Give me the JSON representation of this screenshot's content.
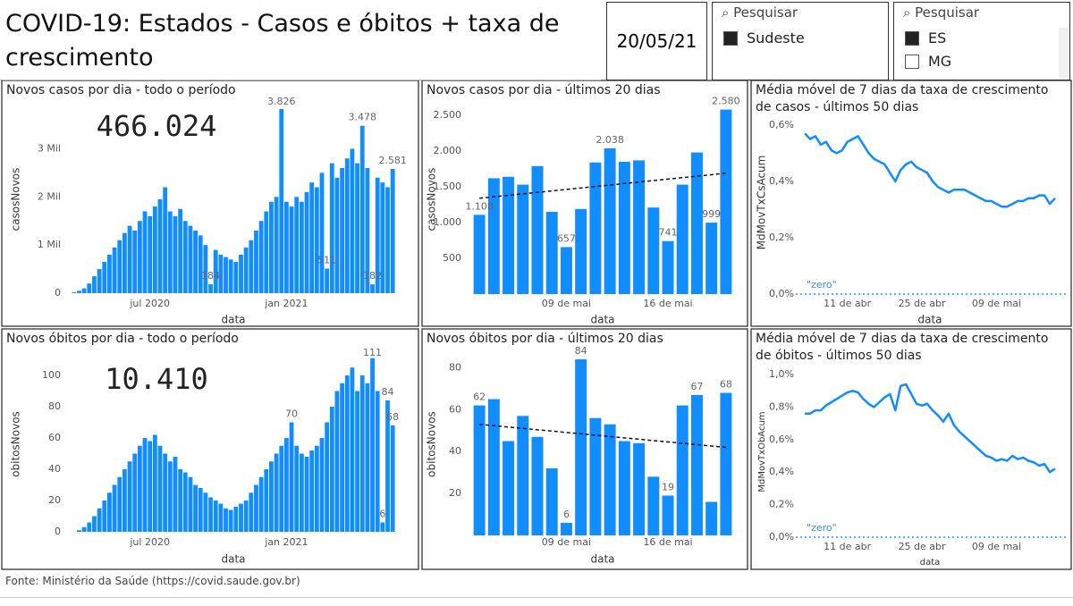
{
  "title": "COVID-19: Estados - Casos e óbitos + taxa de crescimento",
  "date": "20/05/21",
  "slicers": [
    {
      "search": "Pesquisar",
      "items": [
        {
          "label": "Sudeste",
          "checked": true
        }
      ]
    },
    {
      "search": "Pesquisar",
      "items": [
        {
          "label": "ES",
          "checked": true
        },
        {
          "label": "MG",
          "checked": false
        }
      ]
    }
  ],
  "footer": "Fonte: Ministério da Saúde (https://covid.saude.gov.br)",
  "chart_data": [
    {
      "type": "bar",
      "title": "Novos casos por dia - todo o período",
      "big_number": "466.024",
      "xlabel": "data",
      "ylabel": "casosNovos",
      "color": "#118dff",
      "categories": [
        null,
        null,
        null,
        null,
        null,
        null,
        null,
        null,
        null,
        null,
        null,
        null,
        null,
        null,
        null,
        "jul 2020",
        null,
        null,
        null,
        null,
        null,
        null,
        null,
        null,
        null,
        null,
        null,
        null,
        null,
        null,
        null,
        null,
        null,
        null,
        null,
        null,
        null,
        null,
        null,
        null,
        null,
        null,
        "jan 2021",
        null,
        null,
        null,
        null,
        null,
        null,
        null,
        null,
        null,
        null,
        null,
        null,
        null,
        null,
        null,
        null,
        null,
        null,
        null,
        null,
        null
      ],
      "values": [
        20,
        50,
        100,
        200,
        350,
        500,
        650,
        800,
        950,
        1100,
        1250,
        1400,
        1300,
        1500,
        1700,
        1600,
        1800,
        1950,
        2200,
        1700,
        1600,
        1750,
        1500,
        1400,
        1300,
        1200,
        1000,
        184,
        900,
        800,
        750,
        700,
        650,
        800,
        950,
        1100,
        1300,
        1500,
        1700,
        1900,
        2000,
        3826,
        1900,
        1800,
        2000,
        1900,
        2100,
        2300,
        2200,
        2500,
        511,
        2700,
        2400,
        2600,
        2800,
        3000,
        2700,
        3478,
        2600,
        182,
        2400,
        2300,
        2200,
        2581
      ],
      "value_labels": [
        null,
        null,
        null,
        null,
        null,
        null,
        null,
        null,
        null,
        null,
        null,
        null,
        null,
        null,
        null,
        null,
        null,
        null,
        null,
        null,
        null,
        null,
        null,
        null,
        null,
        null,
        null,
        "184",
        null,
        null,
        null,
        null,
        null,
        null,
        null,
        null,
        null,
        null,
        null,
        null,
        null,
        "3.826",
        null,
        null,
        null,
        null,
        null,
        null,
        null,
        null,
        "511",
        null,
        null,
        null,
        null,
        null,
        null,
        "3.478",
        null,
        "182",
        null,
        null,
        null,
        "2.581"
      ],
      "ylim": [
        0,
        3900
      ],
      "yticks": [
        0,
        {
          "value": 1000,
          "label": "1 Mil"
        },
        {
          "value": 2000,
          "label": "2 Mil"
        },
        {
          "value": 3000,
          "label": "3 Mil"
        }
      ]
    },
    {
      "type": "bar",
      "title": "Novos casos por dia - últimos 20 dias",
      "xlabel": "data",
      "ylabel": "casosNovos",
      "color": "#118dff",
      "categories": [
        null,
        null,
        null,
        null,
        null,
        null,
        "09 de mai",
        null,
        null,
        null,
        null,
        null,
        null,
        "16 de mai",
        null,
        null,
        null,
        null
      ],
      "values": [
        1108,
        1620,
        1640,
        1530,
        1790,
        1150,
        657,
        1190,
        1840,
        2038,
        1850,
        1870,
        1210,
        741,
        1530,
        1980,
        999,
        2580
      ],
      "value_labels": [
        "1.108",
        null,
        null,
        null,
        null,
        null,
        "657",
        null,
        null,
        "2.038",
        null,
        null,
        null,
        "741",
        null,
        null,
        "999",
        "2.580"
      ],
      "trend": [
        1340,
        1690
      ],
      "ylim": [
        0,
        2650
      ],
      "yticks": [
        500,
        {
          "value": 1000,
          "label": "1.000"
        },
        {
          "value": 1500,
          "label": "1.500"
        },
        {
          "value": 2000,
          "label": "2.000"
        },
        {
          "value": 2500,
          "label": "2.500"
        }
      ]
    },
    {
      "type": "line",
      "title": "Média móvel de 7 dias da taxa de crescimento de casos - últimos 50 dias",
      "xlabel": "data",
      "ylabel": "MdMovTxCsAcum",
      "color": "#118dff",
      "categories": [
        null,
        null,
        null,
        null,
        null,
        null,
        null,
        null,
        "11 de abr",
        null,
        null,
        null,
        null,
        null,
        null,
        null,
        null,
        null,
        null,
        null,
        null,
        null,
        "25 de abr",
        null,
        null,
        null,
        null,
        null,
        null,
        null,
        null,
        null,
        null,
        null,
        null,
        null,
        "09 de mai",
        null,
        null,
        null,
        null,
        null,
        null,
        null,
        null,
        null,
        null,
        null
      ],
      "values": [
        0.57,
        0.55,
        0.56,
        0.53,
        0.54,
        0.51,
        0.5,
        0.51,
        0.54,
        0.55,
        0.56,
        0.53,
        0.5,
        0.48,
        0.47,
        0.46,
        0.43,
        0.4,
        0.44,
        0.46,
        0.47,
        0.45,
        0.44,
        0.43,
        0.4,
        0.38,
        0.37,
        0.36,
        0.37,
        0.37,
        0.37,
        0.36,
        0.35,
        0.34,
        0.33,
        0.33,
        0.32,
        0.31,
        0.31,
        0.32,
        0.33,
        0.33,
        0.34,
        0.34,
        0.35,
        0.35,
        0.32,
        0.34
      ],
      "reference_line": {
        "label": "\"zero\"",
        "value": 0
      },
      "ylim": [
        0,
        0.65
      ],
      "yticks": [
        {
          "value": 0,
          "label": "0,0%"
        },
        {
          "value": 0.2,
          "label": "0,2%"
        },
        {
          "value": 0.4,
          "label": "0,4%"
        },
        {
          "value": 0.6,
          "label": "0,6%"
        }
      ]
    },
    {
      "type": "bar",
      "title": "Novos óbitos por dia - todo o período",
      "big_number": "10.410",
      "xlabel": "data",
      "ylabel": "obitosNovos",
      "color": "#118dff",
      "categories": [
        null,
        null,
        null,
        null,
        null,
        null,
        null,
        null,
        null,
        null,
        null,
        null,
        null,
        null,
        null,
        "jul 2020",
        null,
        null,
        null,
        null,
        null,
        null,
        null,
        null,
        null,
        null,
        null,
        null,
        null,
        null,
        null,
        null,
        null,
        null,
        null,
        null,
        null,
        null,
        null,
        null,
        null,
        null,
        "jan 2021",
        null,
        null,
        null,
        null,
        null,
        null,
        null,
        null,
        null,
        null,
        null,
        null,
        null,
        null,
        null,
        null,
        null,
        null,
        null,
        null,
        null
      ],
      "values": [
        0,
        1,
        3,
        6,
        10,
        15,
        20,
        25,
        30,
        35,
        40,
        45,
        50,
        55,
        60,
        58,
        62,
        55,
        50,
        45,
        48,
        40,
        38,
        35,
        30,
        28,
        25,
        22,
        20,
        18,
        15,
        14,
        16,
        18,
        20,
        25,
        30,
        35,
        40,
        45,
        50,
        55,
        60,
        70,
        55,
        50,
        48,
        52,
        55,
        60,
        70,
        80,
        90,
        95,
        100,
        105,
        90,
        100,
        95,
        111,
        90,
        6,
        84,
        68
      ],
      "value_labels": [
        null,
        null,
        null,
        null,
        null,
        null,
        null,
        null,
        null,
        null,
        null,
        null,
        null,
        null,
        null,
        null,
        null,
        null,
        null,
        null,
        null,
        null,
        null,
        null,
        null,
        null,
        null,
        null,
        null,
        null,
        null,
        null,
        null,
        null,
        null,
        null,
        null,
        null,
        null,
        null,
        null,
        null,
        null,
        "70",
        null,
        null,
        null,
        null,
        null,
        null,
        null,
        null,
        null,
        null,
        null,
        null,
        null,
        null,
        null,
        "111",
        null,
        "6",
        "84",
        "68"
      ],
      "ylim": [
        0,
        112
      ],
      "yticks": [
        0,
        20,
        40,
        60,
        80,
        100
      ]
    },
    {
      "type": "bar",
      "title": "Novos óbitos por dia - últimos 20 dias",
      "xlabel": "data",
      "ylabel": "obitosNovos",
      "color": "#118dff",
      "categories": [
        null,
        null,
        null,
        null,
        null,
        null,
        "09 de mai",
        null,
        null,
        null,
        null,
        null,
        null,
        "16 de mai",
        null,
        null,
        null,
        null
      ],
      "values": [
        62,
        65,
        45,
        57,
        47,
        32,
        6,
        84,
        56,
        53,
        45,
        44,
        28,
        19,
        62,
        67,
        16,
        68
      ],
      "value_labels": [
        "62",
        null,
        null,
        null,
        null,
        null,
        "6",
        "84",
        null,
        null,
        null,
        null,
        null,
        "19",
        null,
        "67",
        null,
        "68"
      ],
      "trend": [
        53,
        42
      ],
      "ylim": [
        0,
        87
      ],
      "yticks": [
        20,
        40,
        60,
        80
      ]
    },
    {
      "type": "line",
      "title": "Média móvel de 7 dias da taxa de crescimento de óbitos - últimos 50 dias",
      "xlabel": "data",
      "ylabel": "MdMovTxObAcum",
      "color": "#118dff",
      "categories": [
        null,
        null,
        null,
        null,
        null,
        null,
        null,
        null,
        "11 de abr",
        null,
        null,
        null,
        null,
        null,
        null,
        null,
        null,
        null,
        null,
        null,
        null,
        null,
        "25 de abr",
        null,
        null,
        null,
        null,
        null,
        null,
        null,
        null,
        null,
        null,
        null,
        null,
        null,
        "09 de mai",
        null,
        null,
        null,
        null,
        null,
        null,
        null,
        null,
        null,
        null,
        null
      ],
      "values": [
        0.76,
        0.76,
        0.78,
        0.78,
        0.81,
        0.83,
        0.85,
        0.87,
        0.89,
        0.9,
        0.89,
        0.85,
        0.82,
        0.8,
        0.83,
        0.86,
        0.88,
        0.78,
        0.93,
        0.94,
        0.88,
        0.82,
        0.81,
        0.82,
        0.78,
        0.75,
        0.71,
        0.76,
        0.69,
        0.65,
        0.62,
        0.59,
        0.56,
        0.53,
        0.5,
        0.49,
        0.47,
        0.48,
        0.47,
        0.5,
        0.48,
        0.49,
        0.47,
        0.46,
        0.44,
        0.45,
        0.4,
        0.42
      ],
      "reference_line": {
        "label": "\"zero\"",
        "value": 0
      },
      "ylim": [
        0,
        1.05
      ],
      "yticks": [
        {
          "value": 0,
          "label": "0,0%"
        },
        {
          "value": 0.2,
          "label": "0,2%"
        },
        {
          "value": 0.4,
          "label": "0,4%"
        },
        {
          "value": 0.6,
          "label": "0,6%"
        },
        {
          "value": 0.8,
          "label": "0,8%"
        },
        {
          "value": 1.0,
          "label": "1,0%"
        }
      ]
    }
  ]
}
